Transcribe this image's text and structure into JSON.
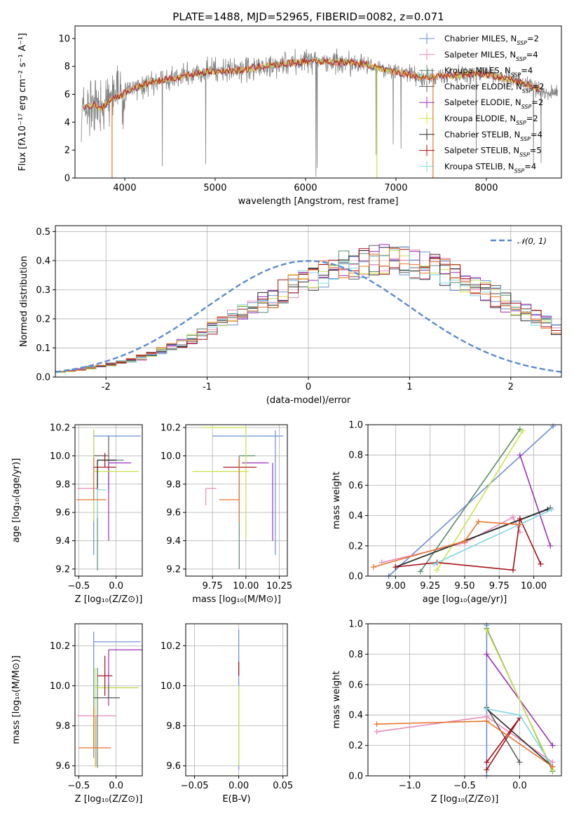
{
  "figure_title": "PLATE=1488, MJD=52965, FIBERID=0082, z=0.071",
  "colors": {
    "data": "#808080",
    "series": [
      "#6b8fd6",
      "#ea89bb",
      "#5a8a6e",
      "#5c5c5c",
      "#9b2fb5",
      "#c9e34a",
      "#2b2b2b",
      "#a50f15",
      "#7fd8e2"
    ],
    "orange": "#e8742a",
    "gauss": "#5b8bd0",
    "grid": "#b0b0b0"
  },
  "chart_data": [
    {
      "id": "spectrum",
      "type": "line",
      "xlabel": "wavelength [Angstrom, rest frame]",
      "ylabel": "Flux [fλ10⁻¹⁷ erg cm⁻² s⁻¹ A⁻¹]",
      "xlim": [
        3450,
        8830
      ],
      "ylim": [
        0,
        10.9
      ],
      "xticks": [
        4000,
        5000,
        6000,
        7000,
        8000
      ],
      "yticks": [
        0,
        2,
        4,
        6,
        8,
        10
      ],
      "grid": false,
      "legend_position": "top-right",
      "legend": [
        {
          "name": "Chabrier MILES, N",
          "sub": "SSP",
          "tail": "=2",
          "color": "#6b8fd6"
        },
        {
          "name": "Salpeter MILES, N",
          "sub": "SSP",
          "tail": "=4",
          "color": "#ea89bb"
        },
        {
          "name": "Kroupa MILES, N",
          "sub": "SSP",
          "tail": "=4",
          "color": "#5a8a6e"
        },
        {
          "name": "Chabrier ELODIE, N",
          "sub": "SSP",
          "tail": "=2",
          "color": "#5c5c5c"
        },
        {
          "name": "Salpeter ELODIE, N",
          "sub": "SSP",
          "tail": "=2",
          "color": "#9b2fb5"
        },
        {
          "name": "Kroupa ELODIE, N",
          "sub": "SSP",
          "tail": "=2",
          "color": "#c9e34a"
        },
        {
          "name": "Chabrier STELIB, N",
          "sub": "SSP",
          "tail": "=4",
          "color": "#2b2b2b"
        },
        {
          "name": "Salpeter STELIB, N",
          "sub": "SSP",
          "tail": "=5",
          "color": "#a50f15"
        },
        {
          "name": "Kroupa STELIB, N",
          "sub": "SSP",
          "tail": "=4",
          "color": "#7fd8e2"
        }
      ],
      "continuum": {
        "x": [
          3550,
          3650,
          3750,
          3850,
          3950,
          4050,
          4150,
          4300,
          4500,
          4700,
          4900,
          5100,
          5300,
          5500,
          5700,
          5900,
          6100,
          6300,
          6500,
          6700,
          6900,
          7100,
          7300,
          7500,
          7700,
          7900,
          8100,
          8300,
          8500,
          8700
        ],
        "y": [
          5.0,
          5.3,
          5.0,
          5.7,
          5.9,
          6.3,
          6.5,
          6.9,
          7.1,
          7.4,
          7.6,
          7.7,
          7.7,
          8.0,
          8.1,
          8.3,
          8.4,
          8.3,
          8.3,
          8.1,
          7.7,
          7.5,
          7.2,
          7.3,
          7.4,
          7.5,
          7.3,
          7.0,
          6.6,
          6.0
        ]
      },
      "model_breaks": [
        {
          "x": 3860,
          "y_end": 0.0
        },
        {
          "x": 6790,
          "y_end": 0.0
        },
        {
          "x": 7410,
          "y_end": 0.0
        }
      ]
    },
    {
      "id": "residuals",
      "type": "bar",
      "xlabel": "(data-model)/error",
      "ylabel": "Normed distribution",
      "xlim": [
        -2.5,
        2.5
      ],
      "ylim": [
        0,
        0.52
      ],
      "xticks": [
        -2,
        -1,
        0,
        1,
        2
      ],
      "yticks": [
        0.0,
        0.1,
        0.2,
        0.3,
        0.4,
        0.5
      ],
      "grid": true,
      "legend_position": "top-right",
      "legend_label": "𝒩(0, 1)",
      "bin_width": 0.1,
      "bin_start": -2.5,
      "envelope": [
        0.018,
        0.022,
        0.026,
        0.032,
        0.036,
        0.043,
        0.05,
        0.058,
        0.067,
        0.078,
        0.09,
        0.104,
        0.118,
        0.132,
        0.15,
        0.166,
        0.184,
        0.202,
        0.22,
        0.24,
        0.258,
        0.276,
        0.294,
        0.312,
        0.328,
        0.344,
        0.358,
        0.37,
        0.381,
        0.39,
        0.396,
        0.399,
        0.401,
        0.399,
        0.396,
        0.39,
        0.381,
        0.37,
        0.358,
        0.344,
        0.328,
        0.312,
        0.294,
        0.276,
        0.258,
        0.24,
        0.22,
        0.202,
        0.184,
        0.166
      ]
    },
    {
      "id": "age_vs_Z",
      "type": "scatter",
      "xlabel": "Z [log₁₀(Z/Z⊙)]",
      "ylabel": "age  [log₁₀(age/yr)]",
      "xlim": [
        -0.55,
        0.35
      ],
      "ylim": [
        9.15,
        10.22
      ],
      "xticks": [
        -0.5,
        0.0
      ],
      "xticklabels": [
        "−0.5",
        "0.0"
      ],
      "yticks": [
        9.2,
        9.4,
        9.6,
        9.8,
        10.0,
        10.2
      ],
      "grid": true,
      "points": [
        {
          "x": -0.3,
          "y": 10.14,
          "xerr": [
            0.0,
            0.63
          ],
          "yerr": [
            0.84,
            0.04
          ],
          "c": 0
        },
        {
          "x": -0.3,
          "y": 9.77,
          "xerr": [
            0.22,
            0.05
          ],
          "yerr": [
            0.0,
            0.0
          ],
          "c": 1
        },
        {
          "x": -0.25,
          "y": 9.97,
          "xerr": [
            0.0,
            0.35
          ],
          "yerr": [
            0.78,
            0.0
          ],
          "c": 2
        },
        {
          "x": -0.1,
          "y": 10.0,
          "xerr": [
            0.2,
            0.0
          ],
          "yerr": [
            0.25,
            0.14
          ],
          "c": 3
        },
        {
          "x": -0.1,
          "y": 9.95,
          "xerr": [
            0.0,
            0.3
          ],
          "yerr": [
            0.55,
            0.0
          ],
          "c": 4
        },
        {
          "x": -0.3,
          "y": 9.89,
          "xerr": [
            0.0,
            0.6
          ],
          "yerr": [
            0.35,
            0.3
          ],
          "c": 5
        },
        {
          "x": -0.25,
          "y": 9.97,
          "xerr": [
            0.0,
            0.25
          ],
          "yerr": [
            0.2,
            0.0
          ],
          "c": 6
        },
        {
          "x": -0.15,
          "y": 9.92,
          "xerr": [
            0.15,
            0.15
          ],
          "yerr": [
            0.0,
            0.1
          ],
          "c": 7
        },
        {
          "x": -0.25,
          "y": 9.76,
          "xerr": [
            0.0,
            0.12
          ],
          "yerr": [
            0.2,
            0.0
          ],
          "c": 8
        },
        {
          "x": -0.3,
          "y": 9.69,
          "xerr": [
            0.23,
            0.17
          ],
          "yerr": [
            0.0,
            0.3
          ],
          "c": "orange"
        }
      ]
    },
    {
      "id": "age_vs_mass",
      "type": "scatter",
      "xlabel": "mass [log₁₀(M/M⊙)]",
      "xlim": [
        9.55,
        10.31
      ],
      "ylim": [
        9.15,
        10.22
      ],
      "xticks": [
        9.75,
        10.0,
        10.25
      ],
      "xticklabels": [
        "9.75",
        "10.00",
        "10.25"
      ],
      "yticks": [
        9.2,
        9.4,
        9.6,
        9.8,
        10.0,
        10.2
      ],
      "grid": true,
      "points": [
        {
          "x": 9.95,
          "y": 10.14,
          "xerr": [
            0.2,
            0.33
          ],
          "yerr": [
            0.0,
            0.0
          ],
          "c": 0
        },
        {
          "x": 10.22,
          "y": 10.0,
          "xerr": [
            0.0,
            0.0
          ],
          "yerr": [
            0.7,
            0.18
          ],
          "c": 0
        },
        {
          "x": 9.7,
          "y": 9.77,
          "xerr": [
            0.0,
            0.08
          ],
          "yerr": [
            0.12,
            0.0
          ],
          "c": 1
        },
        {
          "x": 9.95,
          "y": 10.0,
          "xerr": [
            0.0,
            0.12
          ],
          "yerr": [
            0.8,
            0.0
          ],
          "c": 2
        },
        {
          "x": 9.97,
          "y": 9.95,
          "xerr": [
            0.0,
            0.2
          ],
          "yerr": [
            0.0,
            0.0
          ],
          "c": 4
        },
        {
          "x": 10.2,
          "y": 9.95,
          "xerr": [
            0.0,
            0.0
          ],
          "yerr": [
            0.55,
            0.0
          ],
          "c": 4
        },
        {
          "x": 9.87,
          "y": 9.89,
          "xerr": [
            0.27,
            0.15
          ],
          "yerr": [
            0.0,
            0.0
          ],
          "c": 5
        },
        {
          "x": 10.0,
          "y": 10.2,
          "xerr": [
            0.33,
            0.0
          ],
          "yerr": [
            0.78,
            0.0
          ],
          "c": 5
        },
        {
          "x": 9.95,
          "y": 9.92,
          "xerr": [
            0.12,
            0.13
          ],
          "yerr": [
            0.0,
            0.05
          ],
          "c": 7
        },
        {
          "x": 9.95,
          "y": 9.69,
          "xerr": [
            0.15,
            0.0
          ],
          "yerr": [
            0.16,
            0.3
          ],
          "c": "orange"
        }
      ]
    },
    {
      "id": "weight_vs_age",
      "type": "line",
      "xlabel": "age  [log₁₀(age/yr)]",
      "ylabel": "mass weight",
      "xlim": [
        8.8,
        10.2
      ],
      "ylim": [
        0.0,
        1.0
      ],
      "xticks": [
        9.0,
        9.25,
        9.5,
        9.75,
        10.0
      ],
      "xticklabels": [
        "9.00",
        "9.25",
        "9.50",
        "9.75",
        "10.00"
      ],
      "yticks": [
        0.0,
        0.2,
        0.4,
        0.6,
        0.8,
        1.0
      ],
      "grid": true,
      "series": [
        {
          "c": 0,
          "x": [
            8.95,
            10.14
          ],
          "y": [
            0.0,
            0.99
          ]
        },
        {
          "c": 1,
          "x": [
            8.9,
            9.5,
            9.85,
            9.9
          ],
          "y": [
            0.09,
            0.22,
            0.39,
            0.29
          ]
        },
        {
          "c": 2,
          "x": [
            9.18,
            9.9
          ],
          "y": [
            0.03,
            0.97
          ]
        },
        {
          "c": 3,
          "x": [
            9.0,
            10.12
          ],
          "y": [
            0.06,
            0.45
          ]
        },
        {
          "c": 4,
          "x": [
            9.9,
            10.12
          ],
          "y": [
            0.8,
            0.2
          ]
        },
        {
          "c": 5,
          "x": [
            9.3,
            9.92
          ],
          "y": [
            0.04,
            0.96
          ]
        },
        {
          "c": 6,
          "x": [
            9.0,
            10.1
          ],
          "y": [
            0.06,
            0.44
          ]
        },
        {
          "c": 7,
          "x": [
            9.0,
            9.3,
            9.85,
            9.9,
            10.05
          ],
          "y": [
            0.06,
            0.09,
            0.04,
            0.38,
            0.08
          ]
        },
        {
          "c": 8,
          "x": [
            9.28,
            10.13
          ],
          "y": [
            0.08,
            0.44
          ]
        },
        {
          "c": "orange",
          "x": [
            8.84,
            9.5,
            9.6,
            9.9
          ],
          "y": [
            0.06,
            0.23,
            0.36,
            0.34
          ]
        }
      ]
    },
    {
      "id": "mass_vs_Z",
      "type": "scatter",
      "xlabel": "Z [log₁₀(Z/Z⊙)]",
      "ylabel": "mass [log₁₀(M/M⊙)]",
      "xlim": [
        -0.55,
        0.35
      ],
      "ylim": [
        9.55,
        10.31
      ],
      "xticks": [
        -0.5,
        0.0
      ],
      "xticklabels": [
        "−0.5",
        "0.0"
      ],
      "yticks": [
        9.6,
        9.8,
        10.0,
        10.2
      ],
      "grid": true,
      "points": [
        {
          "x": -0.3,
          "y": 10.22,
          "xerr": [
            0.0,
            0.63
          ],
          "yerr": [
            0.58,
            0.05
          ],
          "c": 0
        },
        {
          "x": -0.27,
          "y": 9.85,
          "xerr": [
            0.25,
            0.27
          ],
          "yerr": [
            0.25,
            0.0
          ],
          "c": 1
        },
        {
          "x": -0.25,
          "y": 9.99,
          "xerr": [
            0.0,
            0.55
          ],
          "yerr": [
            0.4,
            0.1
          ],
          "c": 2
        },
        {
          "x": -0.1,
          "y": 10.18,
          "xerr": [
            0.0,
            0.45
          ],
          "yerr": [
            0.28,
            0.0
          ],
          "c": 4
        },
        {
          "x": -0.28,
          "y": 9.99,
          "xerr": [
            0.0,
            0.58
          ],
          "yerr": [
            0.4,
            0.1
          ],
          "c": 5
        },
        {
          "x": -0.15,
          "y": 10.05,
          "xerr": [
            0.1,
            0.1
          ],
          "yerr": [
            0.1,
            0.1
          ],
          "c": 7
        },
        {
          "x": -0.1,
          "y": 9.94,
          "xerr": [
            0.2,
            0.15
          ],
          "yerr": [
            0.0,
            0.07
          ],
          "c": 3
        },
        {
          "x": -0.3,
          "y": 9.69,
          "xerr": [
            0.2,
            0.23
          ],
          "yerr": [
            0.0,
            0.2
          ],
          "c": "orange"
        }
      ]
    },
    {
      "id": "mass_vs_EBV",
      "type": "scatter",
      "xlabel": "E(B-V)",
      "xlim": [
        -0.06,
        0.055
      ],
      "ylim": [
        9.55,
        10.31
      ],
      "xticks": [
        -0.05,
        0.0,
        0.05
      ],
      "xticklabels": [
        "−0.05",
        "0.00",
        "0.05"
      ],
      "yticks": [
        9.6,
        9.8,
        10.0,
        10.2
      ],
      "grid": true,
      "points": [
        {
          "x": 0.0,
          "y": 10.0,
          "xerr": [
            0.0,
            0.0
          ],
          "yerr": [
            0.42,
            0.28
          ],
          "c": 0
        },
        {
          "x": 0.0,
          "y": 10.05,
          "xerr": [
            0.0,
            0.0
          ],
          "yerr": [
            0.0,
            0.07
          ],
          "c": 7
        },
        {
          "x": 0.0,
          "y": 9.8,
          "xerr": [
            0.0,
            0.0
          ],
          "yerr": [
            0.2,
            0.2
          ],
          "c": 5
        }
      ]
    },
    {
      "id": "weight_vs_Z",
      "type": "line",
      "xlabel": "Z [log₁₀(Z/Z⊙)]",
      "ylabel": "mass weight",
      "xlim": [
        -1.38,
        0.38
      ],
      "ylim": [
        0.0,
        1.0
      ],
      "xticks": [
        -1.0,
        -0.5,
        0.0
      ],
      "xticklabels": [
        "−1.0",
        "−0.5",
        "0.0"
      ],
      "yticks": [
        0.0,
        0.2,
        0.4,
        0.6,
        0.8,
        1.0
      ],
      "grid": true,
      "series": [
        {
          "c": 0,
          "x": [
            -0.3,
            -0.3
          ],
          "y": [
            0.0,
            0.99
          ]
        },
        {
          "c": 1,
          "x": [
            -1.3,
            -0.3,
            0.3
          ],
          "y": [
            0.29,
            0.39,
            0.09
          ]
        },
        {
          "c": 2,
          "x": [
            -0.3,
            0.3
          ],
          "y": [
            0.97,
            0.03
          ]
        },
        {
          "c": 3,
          "x": [
            -0.3,
            0.0
          ],
          "y": [
            0.45,
            0.09
          ]
        },
        {
          "c": 4,
          "x": [
            -0.3,
            0.3
          ],
          "y": [
            0.8,
            0.2
          ]
        },
        {
          "c": 5,
          "x": [
            -0.3,
            0.3
          ],
          "y": [
            0.96,
            0.04
          ]
        },
        {
          "c": 6,
          "x": [
            -0.3,
            0.3
          ],
          "y": [
            0.44,
            0.06
          ]
        },
        {
          "c": 7,
          "x": [
            -0.3,
            0.0,
            -0.3
          ],
          "y": [
            0.04,
            0.38,
            0.09
          ]
        },
        {
          "c": 8,
          "x": [
            -0.3,
            0.0,
            0.3
          ],
          "y": [
            0.44,
            0.4,
            0.06
          ]
        },
        {
          "c": "orange",
          "x": [
            -1.3,
            -0.3,
            0.3
          ],
          "y": [
            0.34,
            0.36,
            0.06
          ]
        }
      ]
    }
  ]
}
